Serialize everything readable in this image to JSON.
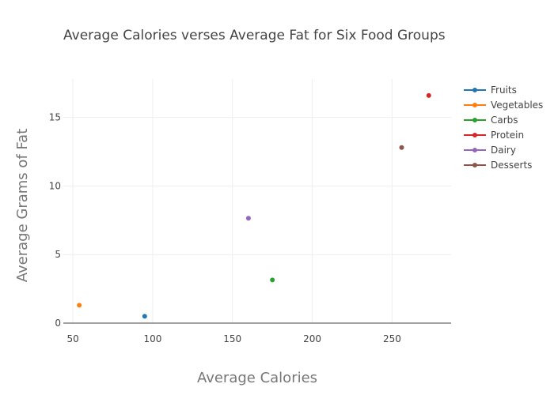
{
  "chart_data": {
    "type": "scatter",
    "title": "Average Calories verses Average Fat for Six Food Groups",
    "xlabel": "Average Calories",
    "ylabel": "Average Grams of Fat",
    "xlim": [
      44,
      287
    ],
    "ylim": [
      0,
      17.8
    ],
    "xticks": [
      50,
      100,
      150,
      200,
      250
    ],
    "yticks": [
      0,
      5,
      10,
      15
    ],
    "grid": true,
    "legend": "right",
    "series": [
      {
        "name": "Fruits",
        "color": "#1f77b4",
        "x": [
          95
        ],
        "y": [
          0.5
        ]
      },
      {
        "name": "Vegetables",
        "color": "#ff7f0e",
        "x": [
          54
        ],
        "y": [
          1.3
        ]
      },
      {
        "name": "Carbs",
        "color": "#2ca02c",
        "x": [
          175
        ],
        "y": [
          3.15
        ]
      },
      {
        "name": "Protein",
        "color": "#d62728",
        "x": [
          273
        ],
        "y": [
          16.6
        ]
      },
      {
        "name": "Dairy",
        "color": "#9467bd",
        "x": [
          160
        ],
        "y": [
          7.65
        ]
      },
      {
        "name": "Desserts",
        "color": "#8c564b",
        "x": [
          256
        ],
        "y": [
          12.8
        ]
      }
    ]
  }
}
